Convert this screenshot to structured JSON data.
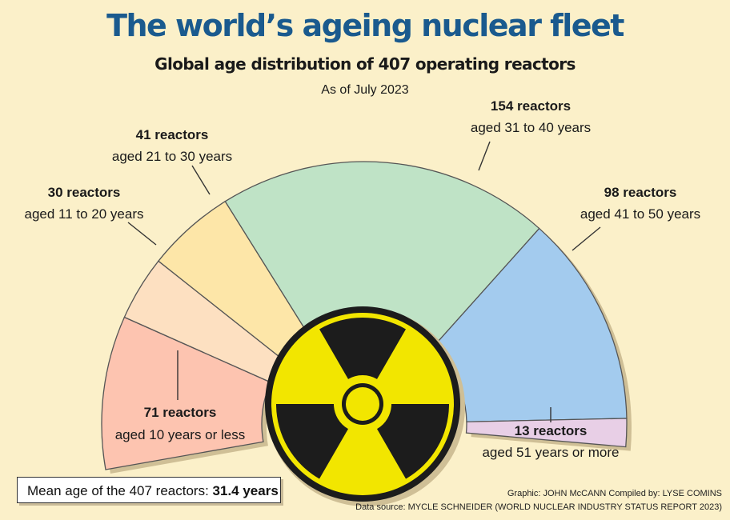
{
  "title": "The world’s ageing nuclear fleet",
  "subtitle": "Global age distribution of 407 operating reactors",
  "as_of": "As of July 2023",
  "chart_data": {
    "type": "pie",
    "shape": "half-donut",
    "total": 407,
    "slices": [
      {
        "value": 71,
        "count_label": "71 reactors",
        "age_label": "aged 10 years or less",
        "color": "#fdc4b0"
      },
      {
        "value": 30,
        "count_label": "30 reactors",
        "age_label": "aged 11 to 20 years",
        "color": "#fde0c1"
      },
      {
        "value": 41,
        "count_label": "41 reactors",
        "age_label": "aged 21 to 30 years",
        "color": "#fde6a8"
      },
      {
        "value": 154,
        "count_label": "154 reactors",
        "age_label": "aged 31 to 40 years",
        "color": "#bfe3c6"
      },
      {
        "value": 98,
        "count_label": "98 reactors",
        "age_label": "aged 41 to 50 years",
        "color": "#a3cbee"
      },
      {
        "value": 13,
        "count_label": "13 reactors",
        "age_label": "aged 51 years or more",
        "color": "#e8cfe6"
      }
    ]
  },
  "mean": {
    "label": "Mean age of the 407 reactors:",
    "value": "31.4 years"
  },
  "credits": {
    "line1": "Graphic: JOHN McCANN  Compiled by: LYSE COMINS",
    "line2": "Data source: MYCLE SCHNEIDER (WORLD NUCLEAR INDUSTRY STATUS REPORT 2023)"
  },
  "icon": "radiation-trefoil-icon",
  "colors": {
    "title": "#1a5a8e",
    "background": "#fbf0c9",
    "trefoil_yellow": "#f2e600",
    "trefoil_black": "#1c1c1c"
  }
}
